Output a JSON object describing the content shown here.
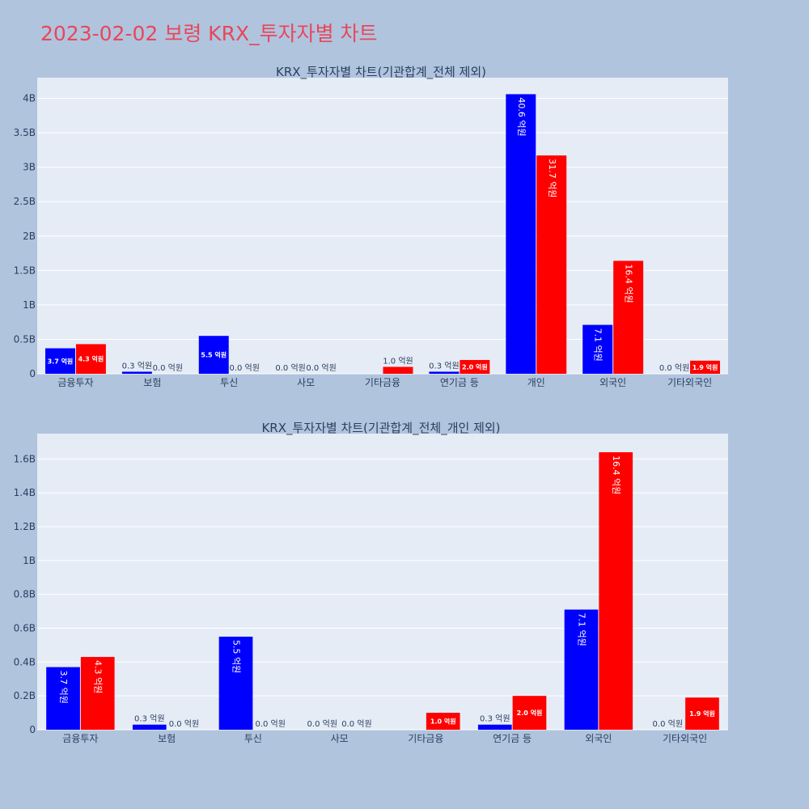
{
  "page": {
    "title": "2023-02-02 보령 KRX_투자자별 차트"
  },
  "colors": {
    "buy": "#0000ff",
    "sell": "#ff0000",
    "plot_bg": "#e5ecf6",
    "page_bg": "#b0c4de",
    "title": "#e8475a"
  },
  "chart_data": [
    {
      "type": "bar",
      "title": "KRX_투자자별 차트(기관합계_전체 제외)",
      "categories": [
        "금융투자",
        "보험",
        "투신",
        "사모",
        "기타금융",
        "연기금 등",
        "개인",
        "외국인",
        "기타외국인"
      ],
      "series": [
        {
          "values": [
            0.37,
            0.03,
            0.55,
            0.0,
            0.0,
            0.03,
            4.06,
            0.71,
            0.0
          ],
          "labels": [
            "3.7 억원",
            "0.3 억원",
            "5.5 억원",
            "0.0 억원",
            "",
            "0.3 억원",
            "40.6 억원",
            "7.1 억원",
            "0.0 억원"
          ]
        },
        {
          "values": [
            0.43,
            0.0,
            0.0,
            0.0,
            0.1,
            0.2,
            3.17,
            1.64,
            0.19
          ],
          "labels": [
            "4.3 억원",
            "0.0 억원",
            "0.0 억원",
            "0.0 억원",
            "1.0 억원",
            "2.0 억원",
            "31.7 억원",
            "16.4 억원",
            "1.9 억원"
          ]
        }
      ],
      "ylim": [
        0,
        4.3
      ],
      "yticks": [
        0,
        0.5,
        1,
        1.5,
        2,
        2.5,
        3,
        3.5,
        4
      ],
      "ytick_labels": [
        "0",
        "0.5B",
        "1B",
        "1.5B",
        "2B",
        "2.5B",
        "3B",
        "3.5B",
        "4B"
      ],
      "grid": true
    },
    {
      "type": "bar",
      "title": "KRX_투자자별 차트(기관합계_전체_개인 제외)",
      "categories": [
        "금융투자",
        "보험",
        "투신",
        "사모",
        "기타금융",
        "연기금 등",
        "외국인",
        "기타외국인"
      ],
      "series": [
        {
          "values": [
            0.37,
            0.03,
            0.55,
            0.0,
            0.0,
            0.03,
            0.71,
            0.0
          ],
          "labels": [
            "3.7 억원",
            "0.3 억원",
            "5.5 억원",
            "0.0 억원",
            "",
            "0.3 억원",
            "7.1 억원",
            "0.0 억원"
          ]
        },
        {
          "values": [
            0.43,
            0.0,
            0.0,
            0.0,
            0.1,
            0.2,
            1.64,
            0.19
          ],
          "labels": [
            "4.3 억원",
            "0.0 억원",
            "0.0 억원",
            "0.0 억원",
            "1.0 억원",
            "2.0 억원",
            "16.4 억원",
            "1.9 억원"
          ]
        }
      ],
      "ylim": [
        0,
        1.75
      ],
      "yticks": [
        0,
        0.2,
        0.4,
        0.6,
        0.8,
        1,
        1.2,
        1.4,
        1.6
      ],
      "ytick_labels": [
        "0",
        "0.2B",
        "0.4B",
        "0.6B",
        "0.8B",
        "1B",
        "1.2B",
        "1.4B",
        "1.6B"
      ],
      "grid": true
    }
  ]
}
